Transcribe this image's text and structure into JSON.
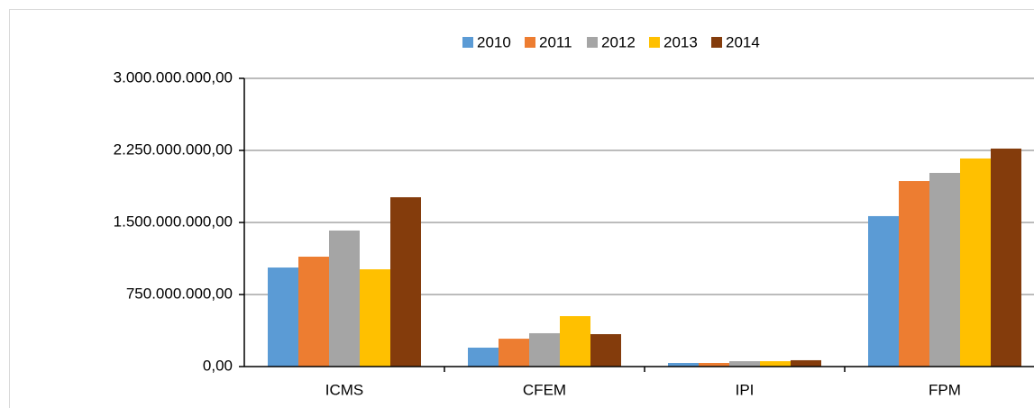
{
  "chart_data": {
    "type": "bar",
    "categories": [
      "ICMS",
      "CFEM",
      "IPI",
      "FPM"
    ],
    "series": [
      {
        "name": "2010",
        "color": "#5b9bd5",
        "values": [
          1031000000,
          197000000,
          37500000,
          1566000000
        ]
      },
      {
        "name": "2011",
        "color": "#ed7d31",
        "values": [
          1144000000,
          290000000,
          37500000,
          1931000000
        ]
      },
      {
        "name": "2012",
        "color": "#a5a5a5",
        "values": [
          1416000000,
          347000000,
          56000000,
          2016000000
        ]
      },
      {
        "name": "2013",
        "color": "#ffc000",
        "values": [
          1012500000,
          525000000,
          56000000,
          2166000000
        ]
      },
      {
        "name": "2014",
        "color": "#843c0c",
        "values": [
          1762500000,
          337500000,
          66000000,
          2269000000
        ]
      }
    ],
    "ylim": [
      0,
      3000000000
    ],
    "yticks": [
      {
        "value": 0,
        "label": "0,00"
      },
      {
        "value": 750000000,
        "label": "750.000.000,00"
      },
      {
        "value": 1500000000,
        "label": "1.500.000.000,00"
      },
      {
        "value": 2250000000,
        "label": "2.250.000.000,00"
      },
      {
        "value": 3000000000,
        "label": "3.000.000.000,00"
      }
    ],
    "grid": true,
    "legend": "top"
  }
}
